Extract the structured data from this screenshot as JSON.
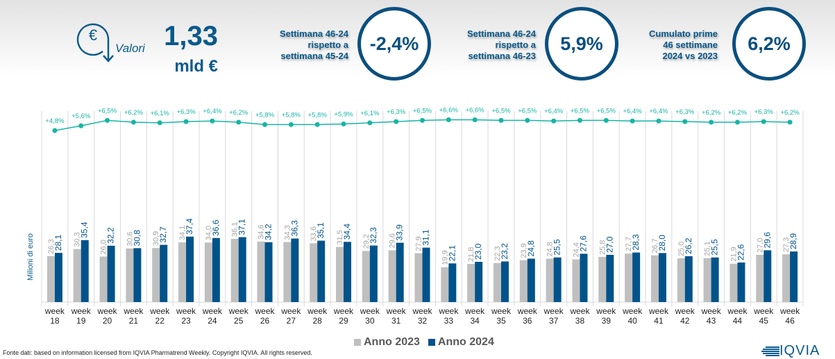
{
  "header": {
    "icon": "euro-down-arrow-icon",
    "valori_label": "Valori",
    "total_value": "1,33",
    "total_unit": "mld €",
    "kpis": [
      {
        "label_lines": [
          "Settimana 46-24",
          "rispetto a",
          "settimana 45-24"
        ],
        "value": "-2,4%"
      },
      {
        "label_lines": [
          "Settimana 46-24",
          "rispetto a",
          "settimana 46-23"
        ],
        "value": "5,9%"
      },
      {
        "label_lines": [
          "Cumulato prime",
          "46 settimane",
          "2024 vs 2023"
        ],
        "value": "6,2%"
      }
    ]
  },
  "colors": {
    "brand": "#0a5a8c",
    "series_2023": "#bfbfbf",
    "series_2024": "#00538a",
    "growth_line": "#16b5a5"
  },
  "chart_data": {
    "type": "bar",
    "title": "",
    "xlabel": "",
    "ylabel": "Milioni di euro",
    "categories": [
      "week 18",
      "week 19",
      "week 20",
      "week 21",
      "week 22",
      "week 23",
      "week 24",
      "week 25",
      "week 26",
      "week 27",
      "week 28",
      "week 29",
      "week 30",
      "week 31",
      "week 32",
      "week 33",
      "week 34",
      "week 35",
      "week 36",
      "week 37",
      "week 38",
      "week 39",
      "week 40",
      "week 41",
      "week 42",
      "week 43",
      "week 44",
      "week 45",
      "week 46"
    ],
    "series": [
      {
        "name": "Anno 2023",
        "values": [
          26.3,
          30.3,
          26.0,
          30.6,
          30.9,
          34.1,
          34.0,
          36.1,
          34.6,
          34.3,
          33.6,
          31.5,
          29.2,
          29.6,
          27.9,
          19.9,
          21.8,
          22.3,
          23.9,
          24.8,
          24.4,
          25.8,
          27.7,
          26.7,
          25.0,
          25.1,
          21.9,
          27.0,
          27.3
        ]
      },
      {
        "name": "Anno 2024",
        "values": [
          28.1,
          35.4,
          32.2,
          30.8,
          32.7,
          37.4,
          36.6,
          37.1,
          34.2,
          36.3,
          35.1,
          34.4,
          32.3,
          33.9,
          31.1,
          22.1,
          23.0,
          23.2,
          24.8,
          25.5,
          27.6,
          27.0,
          28.3,
          28.0,
          26.2,
          25.5,
          22.6,
          29.6,
          28.9
        ]
      }
    ],
    "line_series": {
      "name": "Crescita cumulata",
      "type": "line",
      "values": [
        4.8,
        5.6,
        6.5,
        6.2,
        6.1,
        6.3,
        6.4,
        6.2,
        5.8,
        5.8,
        5.8,
        5.9,
        6.1,
        6.3,
        6.5,
        6.6,
        6.6,
        6.5,
        6.5,
        6.4,
        6.5,
        6.5,
        6.4,
        6.4,
        6.3,
        6.2,
        6.2,
        6.3,
        6.2
      ],
      "labels": [
        "+4,8%",
        "+5,6%",
        "+6,5%",
        "+6,2%",
        "+6,1%",
        "+6,3%",
        "+6,4%",
        "+6,2%",
        "+5,8%",
        "+5,8%",
        "+5,8%",
        "+5,9%",
        "+6,1%",
        "+6,3%",
        "+6,5%",
        "+6,6%",
        "+6,6%",
        "+6,5%",
        "+6,5%",
        "+6,4%",
        "+6,5%",
        "+6,5%",
        "+6,4%",
        "+6,4%",
        "+6,3%",
        "+6,2%",
        "+6,2%",
        "+6,3%",
        "+6,2%"
      ]
    },
    "bar_labels_2023": [
      "26,3",
      "30,3",
      "26,0",
      "30,6",
      "30,9",
      "34,1",
      "34,0",
      "36,1",
      "34,6",
      "34,3",
      "33,6",
      "31,5",
      "29,2",
      "29,6",
      "27,9",
      "19,9",
      "21,8",
      "22,3",
      "23,9",
      "24,8",
      "24,4",
      "25,8",
      "27,7",
      "26,7",
      "25,0",
      "25,1",
      "21,9",
      "27,0",
      "27,3"
    ],
    "bar_labels_2024": [
      "28,1",
      "35,4",
      "32,2",
      "30,8",
      "32,7",
      "37,4",
      "36,6",
      "37,1",
      "34,2",
      "36,3",
      "35,1",
      "34,4",
      "32,3",
      "33,9",
      "31,1",
      "22,1",
      "23,0",
      "23,2",
      "24,8",
      "25,5",
      "27,6",
      "27,0",
      "28,3",
      "28,0",
      "26,2",
      "25,5",
      "22,6",
      "29,6",
      "28,9"
    ],
    "legend": [
      "Anno 2023",
      "Anno 2024"
    ],
    "legend_position": "bottom",
    "grid": "vertical category separators"
  },
  "footer": {
    "source": "Fonte dati: based on information licensed from IQVIA Pharmatrend Weekly. Copyright IQVIA. All rights reserved.",
    "logo_text": "IQVIA",
    "logo_icon": "iqvia-stripes-icon"
  }
}
